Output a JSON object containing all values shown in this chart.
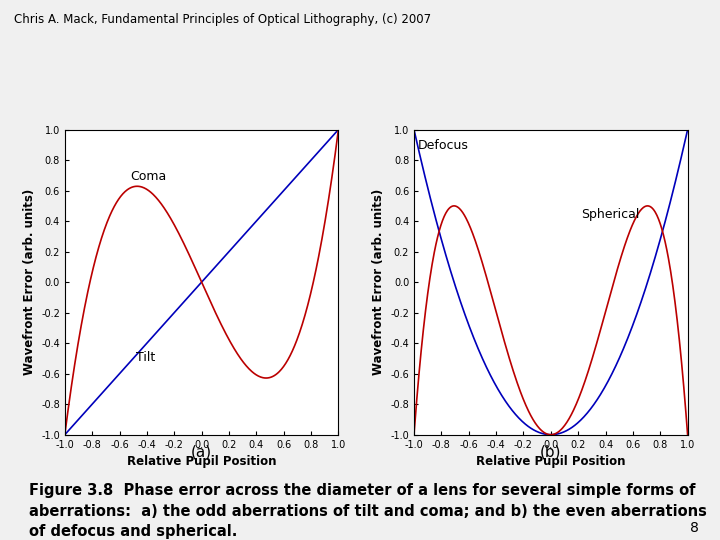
{
  "header": "Chris A. Mack, Fundamental Principles of Optical Lithography, (c) 2007",
  "header_fontsize": 8.5,
  "caption_a": "(a)",
  "caption_b": "(b)",
  "figure_caption_line1": "Figure 3.8  Phase error across the diameter of a lens for several simple forms of",
  "figure_caption_line2": "aberrations:  a) the odd aberrations of tilt and coma; and b) the even aberrations",
  "figure_caption_line3": "of defocus and spherical.",
  "xlabel": "Relative Pupil Position",
  "ylabel": "Wavefront Error (arb. units)",
  "xlim": [
    -1.0,
    1.0
  ],
  "ylim": [
    -1.0,
    1.0
  ],
  "xticks": [
    -1.0,
    -0.8,
    -0.6,
    -0.4,
    -0.2,
    0.0,
    0.2,
    0.4,
    0.6,
    0.8,
    1.0
  ],
  "yticks": [
    -1.0,
    -0.8,
    -0.6,
    -0.4,
    -0.2,
    0.0,
    0.2,
    0.4,
    0.6,
    0.8,
    1.0
  ],
  "xtick_labels": [
    "-1.0",
    "-0.8",
    "-0.6",
    "-0.4",
    "-0.2",
    "0.0",
    "0.2",
    "0.4",
    "0.6",
    "0.8",
    "1.0"
  ],
  "ytick_labels": [
    "-1.0",
    "-0.8",
    "-0.6",
    "-0.4",
    "-0.2",
    "0.0",
    "0.2",
    "0.4",
    "0.6",
    "0.8",
    "1.0"
  ],
  "tilt_label": "Tilt",
  "coma_label": "Coma",
  "defocus_label": "Defocus",
  "spherical_label": "Spherical",
  "blue_color": "#0000BB",
  "red_color": "#BB0000",
  "bg_color": "#f0f0f0",
  "plot_bg_color": "#ffffff",
  "tick_fontsize": 7,
  "axis_label_fontsize": 8.5,
  "annotation_fontsize": 9,
  "page_number": "8",
  "caption_fontsize": 10.5,
  "ab_label_fontsize": 11
}
